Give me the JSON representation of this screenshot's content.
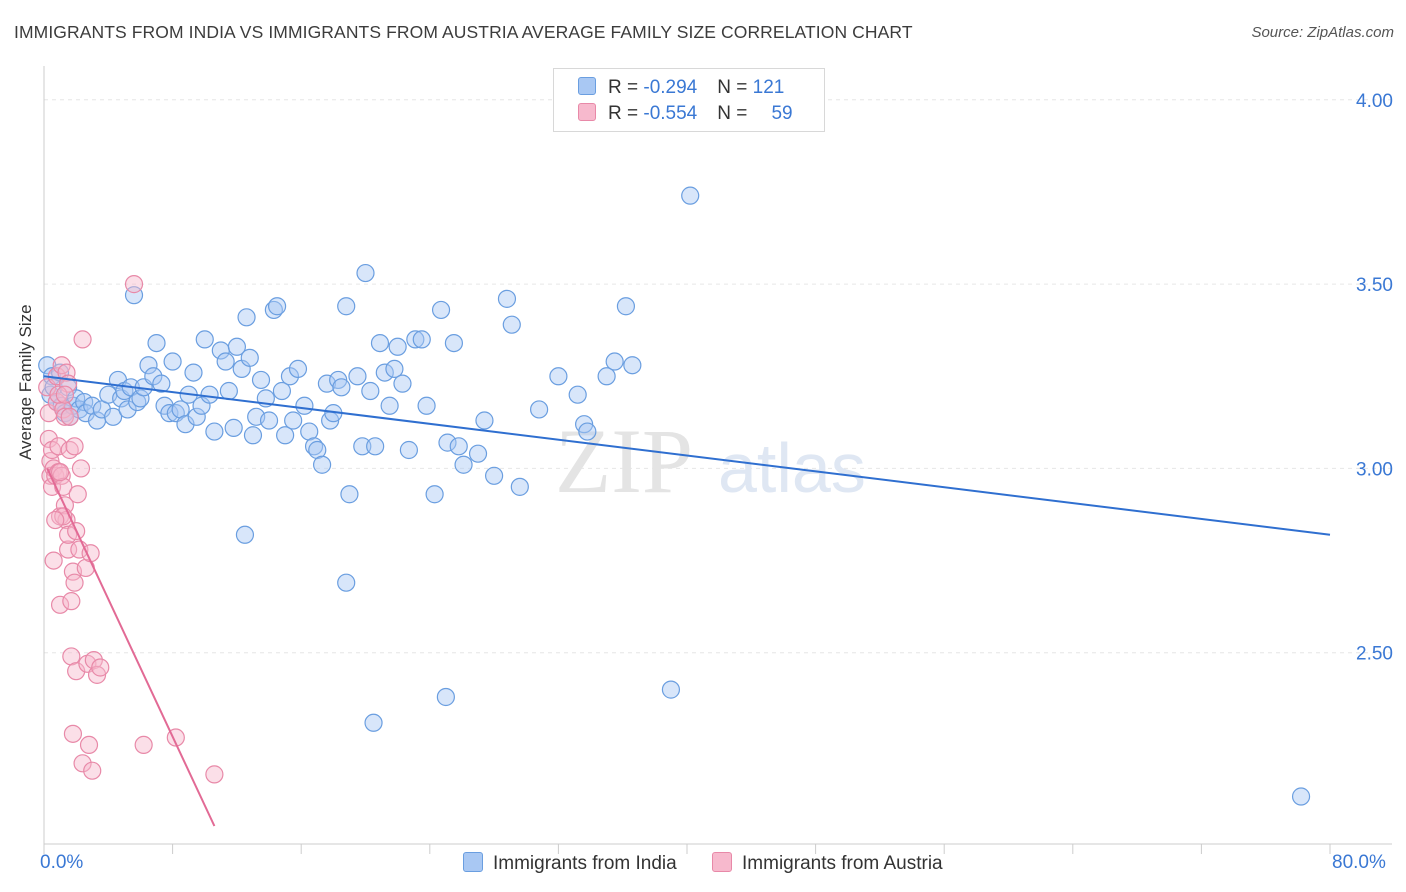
{
  "title": "IMMIGRANTS FROM INDIA VS IMMIGRANTS FROM AUSTRIA AVERAGE FAMILY SIZE CORRELATION CHART",
  "source": "Source: ZipAtlas.com",
  "watermark": {
    "zip": "ZIP",
    "atlas": "atlas"
  },
  "legend_stats": [
    {
      "r_label": "R = ",
      "r_value": "-0.294",
      "n_label": "N = ",
      "n_value": "121",
      "color": "#a9c8f3",
      "border": "#6a9ee0"
    },
    {
      "r_label": "R = ",
      "r_value": "-0.554",
      "n_label": "N = ",
      "n_value": "59",
      "color": "#f7b9cd",
      "border": "#e889a8"
    }
  ],
  "colors": {
    "india_fill": "#a9c8f3",
    "india_stroke": "#6a9ee0",
    "india_line": "#2f6fd0",
    "austria_fill": "#f7b9cd",
    "austria_stroke": "#e889a8",
    "austria_line": "#e26a95",
    "tick_label": "#3a78d4",
    "grid": "#e6e6e6"
  },
  "chart_data": {
    "type": "scatter",
    "title": "IMMIGRANTS FROM INDIA VS IMMIGRANTS FROM AUSTRIA AVERAGE FAMILY SIZE CORRELATION CHART",
    "xlabel": "",
    "ylabel": "Average Family Size",
    "xlim": [
      0,
      80
    ],
    "ylim": [
      2.03,
      4.07
    ],
    "x_tick_labels": [
      "0.0%",
      "80.0%"
    ],
    "y_ticks": [
      2.5,
      3.0,
      3.5,
      4.0
    ],
    "y_tick_labels": [
      "2.50",
      "3.00",
      "3.50",
      "4.00"
    ],
    "grid": "horizontal dashed",
    "legend_position": "bottom-center",
    "series": [
      {
        "name": "Immigrants from India",
        "trend": {
          "x": [
            0,
            80
          ],
          "y": [
            3.25,
            2.82
          ]
        },
        "points": [
          [
            0.2,
            3.28
          ],
          [
            0.4,
            3.2
          ],
          [
            0.5,
            3.25
          ],
          [
            0.6,
            3.22
          ],
          [
            0.8,
            3.18
          ],
          [
            1.0,
            3.26
          ],
          [
            1.1,
            3.17
          ],
          [
            1.3,
            3.15
          ],
          [
            1.5,
            3.22
          ],
          [
            1.6,
            3.14
          ],
          [
            1.8,
            3.17
          ],
          [
            2.0,
            3.19
          ],
          [
            2.2,
            3.16
          ],
          [
            2.5,
            3.18
          ],
          [
            2.6,
            3.15
          ],
          [
            3.0,
            3.17
          ],
          [
            3.3,
            3.13
          ],
          [
            3.6,
            3.16
          ],
          [
            4.0,
            3.2
          ],
          [
            4.3,
            3.14
          ],
          [
            4.6,
            3.24
          ],
          [
            4.8,
            3.19
          ],
          [
            5.0,
            3.21
          ],
          [
            5.2,
            3.16
          ],
          [
            5.4,
            3.22
          ],
          [
            5.6,
            3.47
          ],
          [
            5.8,
            3.18
          ],
          [
            6.0,
            3.19
          ],
          [
            6.2,
            3.22
          ],
          [
            6.5,
            3.28
          ],
          [
            6.8,
            3.25
          ],
          [
            7.0,
            3.34
          ],
          [
            7.3,
            3.23
          ],
          [
            7.5,
            3.17
          ],
          [
            7.8,
            3.15
          ],
          [
            8.0,
            3.29
          ],
          [
            8.2,
            3.15
          ],
          [
            8.5,
            3.16
          ],
          [
            8.8,
            3.12
          ],
          [
            9.0,
            3.2
          ],
          [
            9.3,
            3.26
          ],
          [
            9.5,
            3.14
          ],
          [
            9.8,
            3.17
          ],
          [
            10.0,
            3.35
          ],
          [
            10.3,
            3.2
          ],
          [
            10.6,
            3.1
          ],
          [
            11.0,
            3.32
          ],
          [
            11.3,
            3.29
          ],
          [
            11.5,
            3.21
          ],
          [
            11.8,
            3.11
          ],
          [
            12.0,
            3.33
          ],
          [
            12.3,
            3.27
          ],
          [
            12.6,
            3.41
          ],
          [
            12.8,
            3.3
          ],
          [
            13.0,
            3.09
          ],
          [
            13.2,
            3.14
          ],
          [
            13.5,
            3.24
          ],
          [
            13.8,
            3.19
          ],
          [
            14.0,
            3.13
          ],
          [
            14.3,
            3.43
          ],
          [
            14.5,
            3.44
          ],
          [
            14.8,
            3.21
          ],
          [
            15.0,
            3.09
          ],
          [
            15.3,
            3.25
          ],
          [
            15.5,
            3.13
          ],
          [
            15.8,
            3.27
          ],
          [
            16.2,
            3.17
          ],
          [
            16.5,
            3.1
          ],
          [
            16.8,
            3.06
          ],
          [
            17.0,
            3.05
          ],
          [
            17.3,
            3.01
          ],
          [
            17.6,
            3.23
          ],
          [
            17.8,
            3.13
          ],
          [
            18.0,
            3.15
          ],
          [
            18.3,
            3.24
          ],
          [
            18.5,
            3.22
          ],
          [
            18.8,
            3.44
          ],
          [
            19.0,
            2.93
          ],
          [
            19.5,
            3.25
          ],
          [
            19.8,
            3.06
          ],
          [
            20.0,
            3.53
          ],
          [
            20.3,
            3.21
          ],
          [
            20.6,
            3.06
          ],
          [
            20.9,
            3.34
          ],
          [
            21.2,
            3.26
          ],
          [
            21.5,
            3.17
          ],
          [
            21.8,
            3.27
          ],
          [
            22.0,
            3.33
          ],
          [
            22.3,
            3.23
          ],
          [
            22.7,
            3.05
          ],
          [
            23.1,
            3.35
          ],
          [
            23.5,
            3.35
          ],
          [
            23.8,
            3.17
          ],
          [
            24.3,
            2.93
          ],
          [
            24.7,
            3.43
          ],
          [
            25.1,
            3.07
          ],
          [
            25.5,
            3.34
          ],
          [
            25.8,
            3.06
          ],
          [
            26.1,
            3.01
          ],
          [
            27.0,
            3.04
          ],
          [
            27.4,
            3.13
          ],
          [
            28.0,
            2.98
          ],
          [
            28.8,
            3.46
          ],
          [
            29.1,
            3.39
          ],
          [
            29.6,
            2.95
          ],
          [
            30.8,
            3.16
          ],
          [
            32.0,
            3.25
          ],
          [
            33.2,
            3.2
          ],
          [
            33.6,
            3.12
          ],
          [
            33.8,
            3.1
          ],
          [
            35.0,
            3.25
          ],
          [
            35.5,
            3.29
          ],
          [
            36.2,
            3.44
          ],
          [
            36.6,
            3.28
          ],
          [
            18.8,
            2.69
          ],
          [
            12.5,
            2.82
          ],
          [
            25.0,
            2.38
          ],
          [
            20.5,
            2.31
          ],
          [
            39.0,
            2.4
          ],
          [
            40.2,
            3.74
          ],
          [
            78.2,
            2.11
          ]
        ]
      },
      {
        "name": "Immigrants from Austria",
        "trend": {
          "x": [
            0.2,
            10.6
          ],
          "y": [
            3.0,
            2.03
          ]
        },
        "points": [
          [
            0.2,
            3.22
          ],
          [
            0.3,
            3.15
          ],
          [
            0.3,
            3.08
          ],
          [
            0.4,
            3.02
          ],
          [
            0.4,
            2.98
          ],
          [
            0.5,
            3.05
          ],
          [
            0.5,
            2.95
          ],
          [
            0.6,
            3.0
          ],
          [
            0.6,
            2.75
          ],
          [
            0.7,
            2.98
          ],
          [
            0.8,
            3.25
          ],
          [
            0.8,
            3.18
          ],
          [
            0.9,
            3.06
          ],
          [
            0.9,
            2.99
          ],
          [
            1.0,
            2.87
          ],
          [
            1.0,
            2.63
          ],
          [
            1.1,
            3.28
          ],
          [
            1.1,
            2.98
          ],
          [
            1.2,
            3.16
          ],
          [
            1.2,
            2.95
          ],
          [
            1.3,
            3.14
          ],
          [
            1.3,
            2.9
          ],
          [
            1.4,
            3.26
          ],
          [
            1.4,
            2.86
          ],
          [
            1.5,
            3.23
          ],
          [
            1.5,
            2.78
          ],
          [
            1.6,
            3.14
          ],
          [
            1.6,
            3.05
          ],
          [
            1.7,
            2.64
          ],
          [
            1.7,
            2.49
          ],
          [
            1.8,
            2.72
          ],
          [
            1.8,
            2.28
          ],
          [
            1.9,
            3.06
          ],
          [
            1.9,
            2.69
          ],
          [
            2.0,
            2.45
          ],
          [
            2.1,
            2.93
          ],
          [
            2.2,
            2.78
          ],
          [
            2.3,
            3.0
          ],
          [
            2.4,
            3.35
          ],
          [
            2.4,
            2.2
          ],
          [
            2.6,
            2.73
          ],
          [
            2.7,
            2.47
          ],
          [
            2.8,
            2.25
          ],
          [
            2.9,
            2.77
          ],
          [
            3.0,
            2.18
          ],
          [
            3.1,
            2.48
          ],
          [
            3.3,
            2.44
          ],
          [
            3.5,
            2.46
          ],
          [
            0.9,
            3.2
          ],
          [
            1.2,
            2.87
          ],
          [
            1.0,
            2.99
          ],
          [
            0.7,
            2.86
          ],
          [
            1.5,
            2.82
          ],
          [
            2.0,
            2.83
          ],
          [
            5.6,
            3.5
          ],
          [
            6.2,
            2.25
          ],
          [
            8.2,
            2.27
          ],
          [
            10.6,
            2.17
          ],
          [
            1.3,
            3.2
          ]
        ]
      }
    ]
  },
  "axis_labels": {
    "ylabel": "Average Family Size",
    "x_left": "0.0%",
    "x_right": "80.0%"
  }
}
